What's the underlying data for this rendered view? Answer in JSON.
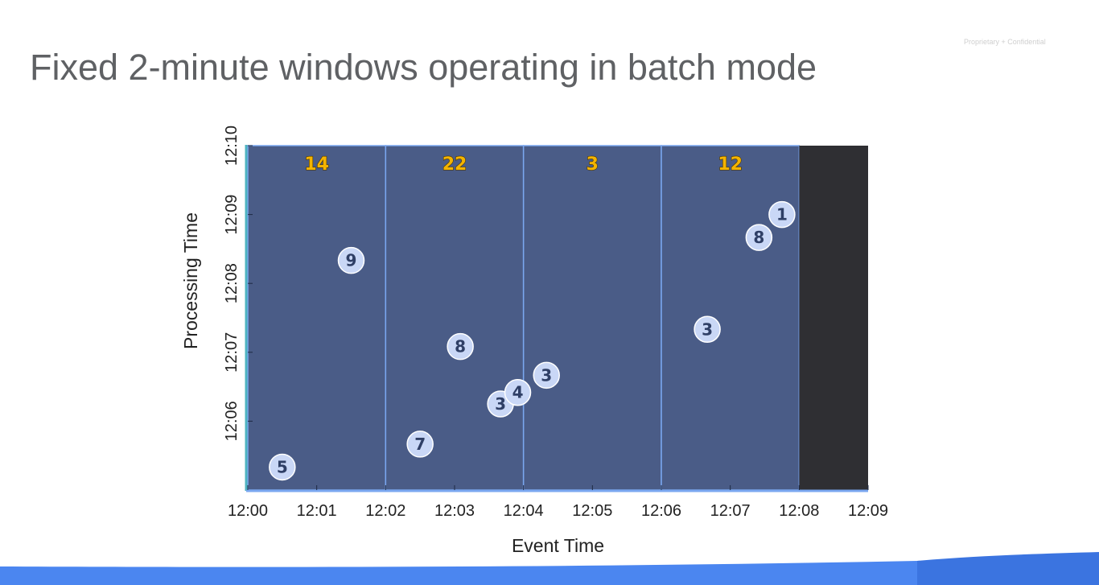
{
  "slide": {
    "title": "Fixed 2-minute windows operating in batch mode",
    "confidential": "Proprietary + Confidential"
  },
  "chart_data": {
    "type": "scatter",
    "title": "",
    "xlabel": "Event Time",
    "ylabel": "Processing Time",
    "x_ticks": [
      "12:00",
      "12:01",
      "12:02",
      "12:03",
      "12:04",
      "12:05",
      "12:06",
      "12:07",
      "12:08",
      "12:09"
    ],
    "y_ticks": [
      "12:06",
      "12:07",
      "12:08",
      "12:09",
      "12:10"
    ],
    "xlim": [
      "12:00",
      "12:09"
    ],
    "ylim": [
      "12:05",
      "12:10"
    ],
    "window_size_minutes": 2,
    "windows": [
      {
        "start": "12:00",
        "end": "12:02",
        "sum": "14"
      },
      {
        "start": "12:02",
        "end": "12:04",
        "sum": "22"
      },
      {
        "start": "12:04",
        "end": "12:06",
        "sum": "3"
      },
      {
        "start": "12:06",
        "end": "12:08",
        "sum": "12"
      }
    ],
    "unprocessed_region": {
      "start": "12:08",
      "end": "12:09"
    },
    "points": [
      {
        "value": "5",
        "event_time": "12:00:30",
        "processing_time": "12:05:20"
      },
      {
        "value": "9",
        "event_time": "12:01:30",
        "processing_time": "12:08:20"
      },
      {
        "value": "7",
        "event_time": "12:02:30",
        "processing_time": "12:05:40"
      },
      {
        "value": "8",
        "event_time": "12:03:05",
        "processing_time": "12:07:05"
      },
      {
        "value": "3",
        "event_time": "12:03:40",
        "processing_time": "12:06:15"
      },
      {
        "value": "4",
        "event_time": "12:03:55",
        "processing_time": "12:06:25"
      },
      {
        "value": "3",
        "event_time": "12:04:20",
        "processing_time": "12:06:40"
      },
      {
        "value": "3",
        "event_time": "12:06:40",
        "processing_time": "12:07:20"
      },
      {
        "value": "8",
        "event_time": "12:07:25",
        "processing_time": "12:08:40"
      },
      {
        "value": "1",
        "event_time": "12:07:45",
        "processing_time": "12:09:00"
      }
    ],
    "grid": false,
    "colors": {
      "window_fill": "#4a5c87",
      "window_border": "#7aa7f0",
      "unprocessed_fill": "#2f2f33",
      "point_fill": "#c9d7f6",
      "point_text": "#2f3f66",
      "sum_fill": "#f4b400",
      "sum_stroke": "#4d3700"
    }
  }
}
